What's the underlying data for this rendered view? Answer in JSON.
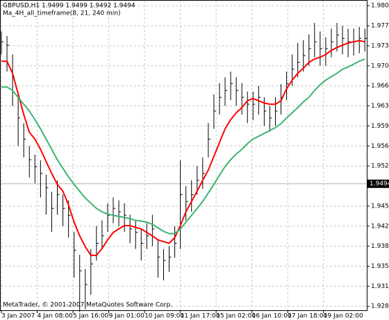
{
  "chart_data": {
    "type": "ohlc",
    "title": "GBPUSD,H1  1.9499 1.9499 1.9492 1.9494",
    "subtitle": "Ma_4H_all_timeframe(8, 21, 240 min)",
    "footer": "MetaTrader, © 2001-2007 MetaQuotes Software Corp.",
    "bar_color": "#000000",
    "grid": true,
    "x": [
      0,
      5,
      10,
      15,
      20,
      25,
      30,
      35,
      40,
      45,
      50,
      55,
      60,
      65,
      70,
      75,
      80,
      85,
      90,
      95,
      100,
      105,
      110,
      115,
      120,
      125,
      130,
      135,
      140,
      145,
      150,
      155,
      160,
      165,
      170,
      175,
      180,
      185,
      190,
      195,
      200,
      205,
      210,
      215,
      220,
      225,
      230,
      235,
      240,
      245,
      250,
      255,
      260,
      265,
      270,
      275,
      280,
      285,
      290,
      295,
      300,
      305,
      310,
      315,
      320,
      325
    ],
    "high": [
      1.976,
      1.9752,
      1.972,
      1.965,
      1.96,
      1.956,
      1.9545,
      1.9535,
      1.951,
      1.948,
      1.95,
      1.9475,
      1.9465,
      1.941,
      1.937,
      1.9345,
      1.938,
      1.942,
      1.943,
      1.946,
      1.947,
      1.9465,
      1.946,
      1.944,
      1.943,
      1.9415,
      1.9425,
      1.944,
      1.9395,
      1.938,
      1.9385,
      1.942,
      1.9535,
      1.949,
      1.95,
      1.9525,
      1.954,
      1.96,
      1.965,
      1.967,
      1.968,
      1.969,
      1.968,
      1.967,
      1.9655,
      1.9655,
      1.9665,
      1.9645,
      1.963,
      1.9645,
      1.9668,
      1.969,
      1.972,
      1.974,
      1.9745,
      1.9755,
      1.9775,
      1.976,
      1.975,
      1.9765,
      1.9775,
      1.977,
      1.9765,
      1.9765,
      1.9768,
      1.9765
    ],
    "low": [
      1.972,
      1.969,
      1.963,
      1.956,
      1.954,
      1.9505,
      1.9495,
      1.947,
      1.944,
      1.941,
      1.944,
      1.942,
      1.94,
      1.933,
      1.927,
      1.9275,
      1.93,
      1.936,
      1.938,
      1.941,
      1.9425,
      1.942,
      1.941,
      1.939,
      1.938,
      1.936,
      1.938,
      1.9385,
      1.933,
      1.9325,
      1.934,
      1.9365,
      1.938,
      1.943,
      1.9445,
      1.9475,
      1.9485,
      1.954,
      1.959,
      1.9615,
      1.963,
      1.964,
      1.963,
      1.9615,
      1.96,
      1.9605,
      1.9615,
      1.9595,
      1.9585,
      1.9595,
      1.9615,
      1.964,
      1.9665,
      1.968,
      1.969,
      1.97,
      1.9715,
      1.97,
      1.97,
      1.9715,
      1.9725,
      1.972,
      1.9715,
      1.9718,
      1.9722,
      1.9725
    ],
    "close": [
      1.9742,
      1.9736,
      1.9681,
      1.9609,
      1.9572,
      1.9536,
      1.9524,
      1.9512,
      1.9487,
      1.9451,
      1.9475,
      1.9451,
      1.9439,
      1.9378,
      1.9342,
      1.9318,
      1.9354,
      1.939,
      1.9403,
      1.9439,
      1.9451,
      1.9445,
      1.9439,
      1.9415,
      1.9409,
      1.939,
      1.9403,
      1.9415,
      1.9366,
      1.936,
      1.9366,
      1.939,
      1.9475,
      1.9463,
      1.9475,
      1.95,
      1.9512,
      1.9572,
      1.9621,
      1.9645,
      1.9657,
      1.9669,
      1.9657,
      1.9645,
      1.9633,
      1.9633,
      1.9645,
      1.9621,
      1.9609,
      1.9621,
      1.9645,
      1.9669,
      1.9694,
      1.9706,
      1.9718,
      1.973,
      1.9742,
      1.973,
      1.973,
      1.9742,
      1.9754,
      1.9748,
      1.9742,
      1.9742,
      1.9748,
      1.9748
    ],
    "series": [
      {
        "color": "#ff0000",
        "values": [
          1.9708,
          1.9708,
          1.9687,
          1.9651,
          1.9615,
          1.9584,
          1.9572,
          1.9554,
          1.9533,
          1.9512,
          1.9493,
          1.9481,
          1.9457,
          1.9427,
          1.9403,
          1.9384,
          1.9369,
          1.9369,
          1.9381,
          1.9396,
          1.9409,
          1.9415,
          1.9421,
          1.9421,
          1.9418,
          1.9415,
          1.9409,
          1.9403,
          1.9396,
          1.9393,
          1.939,
          1.94,
          1.9421,
          1.9445,
          1.9463,
          1.9481,
          1.95,
          1.9518,
          1.9542,
          1.9566,
          1.959,
          1.9606,
          1.9618,
          1.9627,
          1.9639,
          1.9643,
          1.9639,
          1.9635,
          1.9633,
          1.9633,
          1.9639,
          1.966,
          1.9675,
          1.9687,
          1.9696,
          1.9706,
          1.9712,
          1.9715,
          1.972,
          1.9727,
          1.9732,
          1.9736,
          1.974,
          1.9742,
          1.9744,
          1.9742
        ]
      },
      {
        "color": "#3cb371",
        "values": [
          1.9663,
          1.9663,
          1.9657,
          1.9645,
          1.9633,
          1.9621,
          1.9606,
          1.959,
          1.9572,
          1.9554,
          1.9536,
          1.9521,
          1.9506,
          1.9493,
          1.9481,
          1.9469,
          1.946,
          1.9451,
          1.9445,
          1.9441,
          1.9439,
          1.9437,
          1.9435,
          1.9433,
          1.943,
          1.9429,
          1.9427,
          1.9423,
          1.9417,
          1.9411,
          1.9407,
          1.9407,
          1.9415,
          1.9427,
          1.9439,
          1.9451,
          1.9463,
          1.9478,
          1.9493,
          1.9509,
          1.9524,
          1.9536,
          1.9546,
          1.9554,
          1.9564,
          1.9572,
          1.9577,
          1.9582,
          1.9587,
          1.9592,
          1.9599,
          1.9609,
          1.9618,
          1.9627,
          1.9637,
          1.9645,
          1.9657,
          1.9667,
          1.9675,
          1.9681,
          1.9687,
          1.9694,
          1.9698,
          1.9703,
          1.9708,
          1.9712
        ]
      }
    ],
    "current_price": 1.9494,
    "xlim": [
      0,
      327
    ],
    "xticks": [
      {
        "value": 0,
        "label": "3 Jan 2007"
      },
      {
        "value": 32,
        "label": "4 Jan 08:00"
      },
      {
        "value": 64,
        "label": "5 Jan 16:00"
      },
      {
        "value": 96,
        "label": "9 Jan 01:00"
      },
      {
        "value": 128,
        "label": "10 Jan 09:00"
      },
      {
        "value": 160,
        "label": "11 Jan 17:00"
      },
      {
        "value": 192,
        "label": "15 Jan 02:00"
      },
      {
        "value": 224,
        "label": "16 Jan 10:00"
      },
      {
        "value": 256,
        "label": "17 Jan 18:00"
      },
      {
        "value": 288,
        "label": "19 Jan 02:00"
      }
    ],
    "ylim": [
      1.9273,
      1.9815
    ],
    "yticks": [
      1.9805,
      {
        "value": 1.977,
        "label": "1.9770"
      },
      1.9735,
      {
        "value": 1.97,
        "label": "1.9700"
      },
      1.9665,
      {
        "value": 1.963,
        "label": "1.9630"
      },
      1.9595,
      {
        "value": 1.956,
        "label": "1.9560"
      },
      1.9525,
      1.9455,
      {
        "value": 1.942,
        "label": "1.9420"
      },
      1.9385,
      {
        "value": 1.935,
        "label": "1.9350"
      },
      1.9315,
      {
        "value": 1.928,
        "label": "1.9280"
      }
    ]
  }
}
